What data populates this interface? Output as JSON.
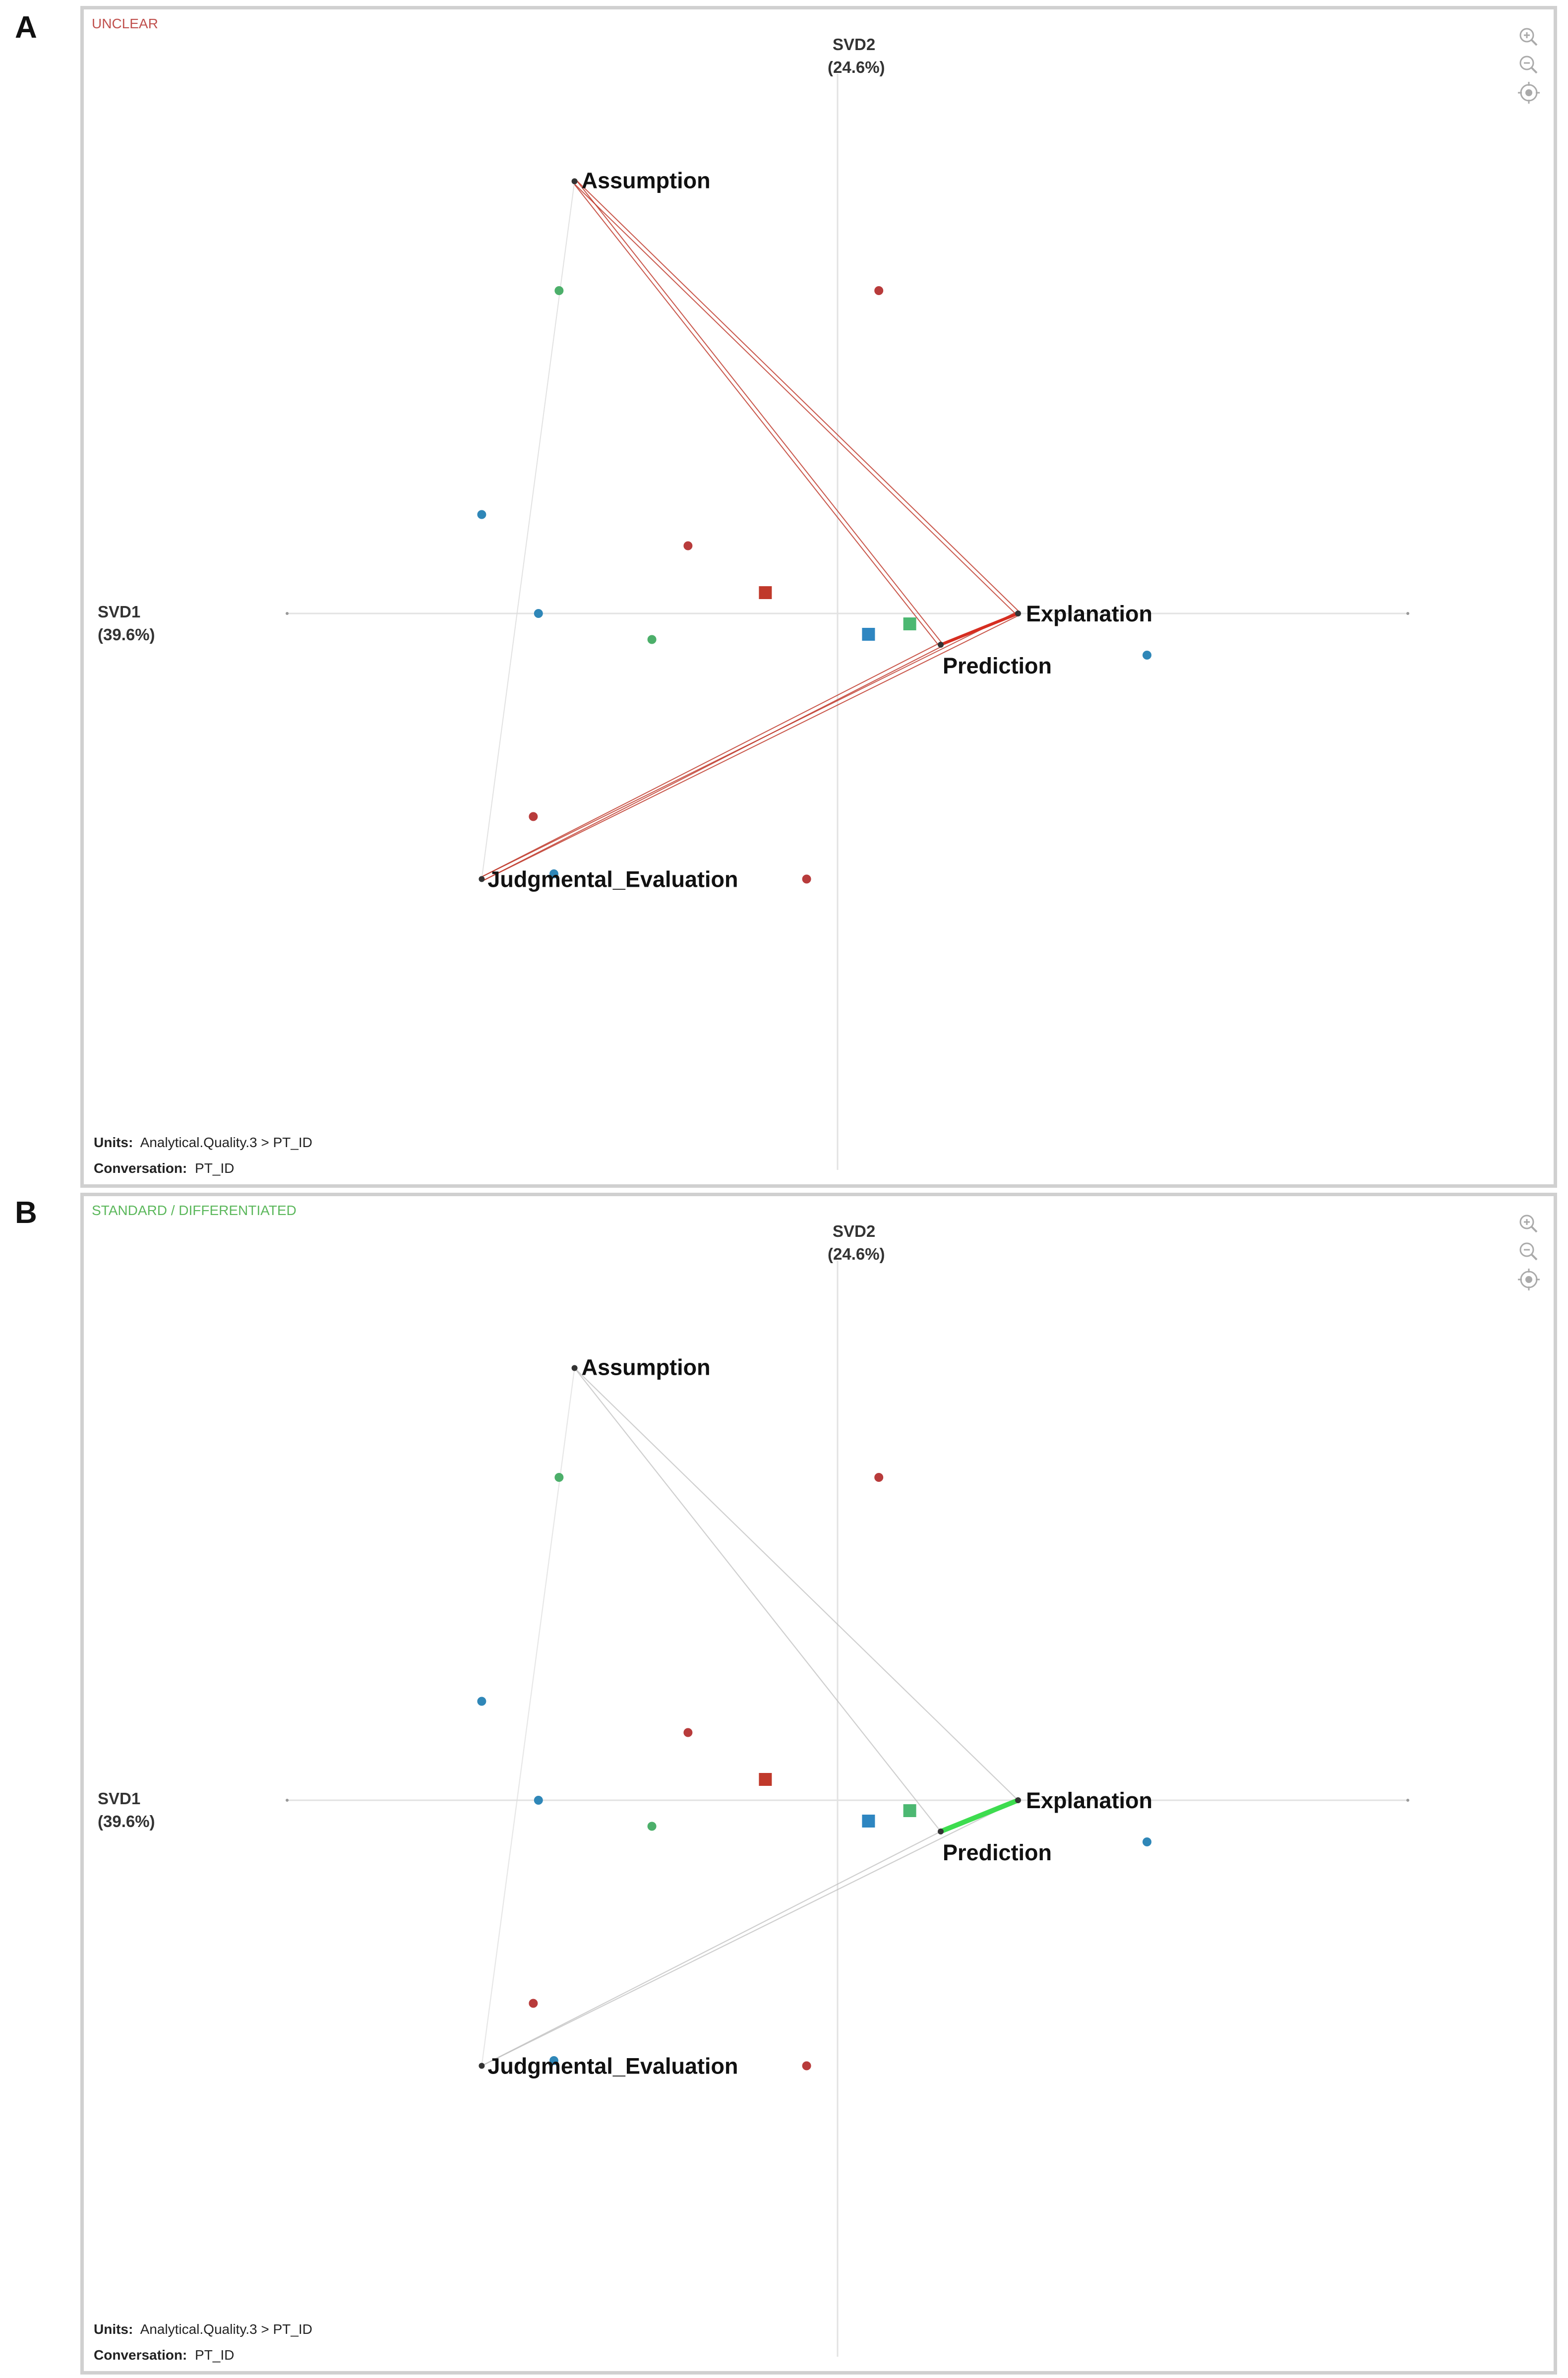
{
  "panels": [
    {
      "letter": "A",
      "condition_label": "UNCLEAR",
      "condition_color": "#c0504d",
      "edge_color": "#c0392b",
      "strong_edge": {
        "from": "Prediction",
        "to": "Explanation",
        "color": "#d62d20",
        "weight": 6
      },
      "units_key": "Units:",
      "units_value": "Analytical.Quality.3 > PT_ID",
      "conversation_key": "Conversation:",
      "conversation_value": "PT_ID"
    },
    {
      "letter": "B",
      "condition_label": "STANDARD / DIFFERENTIATED",
      "condition_color": "#5cb85c",
      "edge_color": "#bbbbbb",
      "strong_edge": {
        "from": "Prediction",
        "to": "Explanation",
        "color": "#3ddc4f",
        "weight": 10
      },
      "units_key": "Units:",
      "units_value": "Analytical.Quality.3 > PT_ID",
      "conversation_key": "Conversation:",
      "conversation_value": "PT_ID"
    }
  ],
  "axes": {
    "x_title": "SVD1",
    "x_pct": "(39.6%)",
    "y_title": "SVD2",
    "y_pct": "(24.6%)"
  },
  "tools": [
    "zoom-in-icon",
    "zoom-out-icon",
    "locate-icon"
  ],
  "nodes": [
    {
      "name": "Assumption",
      "x": -0.51,
      "y": 0.83
    },
    {
      "name": "Explanation",
      "x": 0.35,
      "y": 0.0
    },
    {
      "name": "Prediction",
      "x": 0.2,
      "y": -0.06
    },
    {
      "name": "Judgmental_Evaluation",
      "x": -0.69,
      "y": -0.51
    }
  ],
  "points": [
    {
      "x": -0.54,
      "y": 0.62,
      "color": "#4caf6a",
      "shape": "circle"
    },
    {
      "x": 0.08,
      "y": 0.62,
      "color": "#b83b3b",
      "shape": "circle"
    },
    {
      "x": -0.69,
      "y": 0.19,
      "color": "#2f87b8",
      "shape": "circle"
    },
    {
      "x": -0.29,
      "y": 0.13,
      "color": "#b83b3b",
      "shape": "circle"
    },
    {
      "x": -0.58,
      "y": 0.0,
      "color": "#2f87b8",
      "shape": "circle"
    },
    {
      "x": -0.36,
      "y": -0.05,
      "color": "#4caf6a",
      "shape": "circle"
    },
    {
      "x": 0.6,
      "y": -0.08,
      "color": "#2f87b8",
      "shape": "circle"
    },
    {
      "x": -0.59,
      "y": -0.39,
      "color": "#b83b3b",
      "shape": "circle"
    },
    {
      "x": -0.55,
      "y": -0.5,
      "color": "#2f87b8",
      "shape": "circle"
    },
    {
      "x": -0.06,
      "y": -0.51,
      "color": "#b83b3b",
      "shape": "circle"
    },
    {
      "x": -0.14,
      "y": 0.04,
      "color": "#c0392b",
      "shape": "square"
    },
    {
      "x": 0.06,
      "y": -0.04,
      "color": "#2e86c1",
      "shape": "square"
    },
    {
      "x": 0.14,
      "y": -0.02,
      "color": "#4cb872",
      "shape": "square"
    }
  ],
  "edges": [
    [
      "Assumption",
      "Explanation"
    ],
    [
      "Assumption",
      "Prediction"
    ],
    [
      "Judgmental_Evaluation",
      "Explanation"
    ],
    [
      "Judgmental_Evaluation",
      "Prediction"
    ],
    [
      "Assumption",
      "Judgmental_Evaluation"
    ]
  ]
}
